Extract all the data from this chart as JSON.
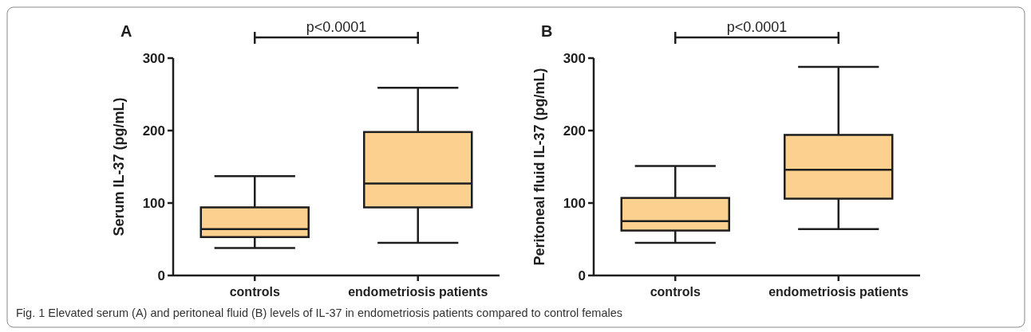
{
  "chart_data": [
    {
      "type": "box",
      "title": "A",
      "ylabel": "Serum IL-37 (pg/mL)",
      "categories": [
        "controls",
        "endometriosis patients"
      ],
      "color": "#fcd08f",
      "boxes": [
        {
          "low": 38,
          "q1": 53,
          "median": 64,
          "q3": 94,
          "high": 137
        },
        {
          "low": 45,
          "q1": 94,
          "median": 127,
          "q3": 198,
          "high": 259
        }
      ],
      "ylim": [
        0,
        300
      ],
      "yticks": [
        0,
        100,
        200,
        300
      ],
      "annotations": [
        "p<0.0001",
        "Fig. 1  Elevated serum (A) and peritoneal fluid (B) levels of IL-37 in endometriosis patients compared to control females"
      ]
    },
    {
      "type": "box",
      "title": "B",
      "ylabel": "Peritoneal fluid IL-37 (pg/mL)",
      "categories": [
        "controls",
        "endometriosis patients"
      ],
      "color": "#fcd08f",
      "boxes": [
        {
          "low": 45,
          "q1": 62,
          "median": 75,
          "q3": 107,
          "high": 151
        },
        {
          "low": 64,
          "q1": 106,
          "median": 146,
          "q3": 194,
          "high": 288
        }
      ],
      "ylim": [
        0,
        300
      ],
      "yticks": [
        0,
        100,
        200,
        300
      ],
      "annotations": [
        "p<0.0001"
      ]
    }
  ]
}
